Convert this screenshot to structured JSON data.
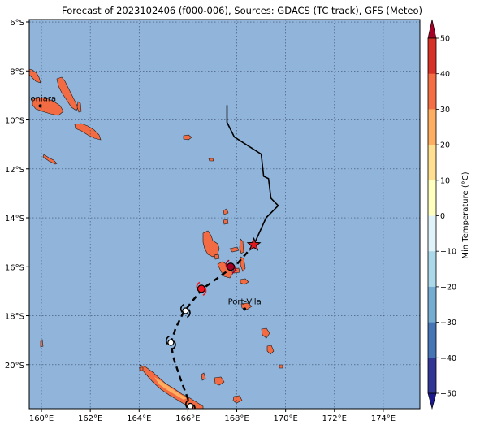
{
  "title": "Forecast of 2023102406 (f000-006), Sources: GDACS (TC track), GFS (Meteo)",
  "map": {
    "lon_range": [
      159.5,
      175.5
    ],
    "lat_range": [
      -21.8,
      -5.9
    ],
    "lon_ticks": [
      "160°E",
      "162°E",
      "164°E",
      "166°E",
      "168°E",
      "170°E",
      "172°E",
      "174°E"
    ],
    "lat_ticks": [
      "6°S",
      "8°S",
      "10°S",
      "12°S",
      "14°S",
      "16°S",
      "18°S",
      "20°S"
    ],
    "ocean_color": "#91b5da",
    "land_color": "#f26b43",
    "gridlines": true
  },
  "cities": [
    {
      "name": "Honiara",
      "lon": 159.95,
      "lat": -9.43
    },
    {
      "name": "Port-Vila",
      "lon": 168.32,
      "lat": -17.73
    }
  ],
  "track": {
    "past": [
      [
        167.6,
        -9.4
      ],
      [
        167.6,
        -10.1
      ],
      [
        167.9,
        -10.7
      ],
      [
        169.0,
        -11.4
      ],
      [
        169.1,
        -12.3
      ],
      [
        169.3,
        -12.4
      ],
      [
        169.4,
        -13.2
      ],
      [
        169.7,
        -13.5
      ],
      [
        169.2,
        -14.0
      ],
      [
        168.7,
        -15.1
      ]
    ],
    "forecast": [
      [
        168.7,
        -15.1
      ],
      [
        168.0,
        -15.9
      ],
      [
        167.3,
        -16.4
      ],
      [
        166.6,
        -16.9
      ],
      [
        166.1,
        -17.5
      ],
      [
        165.8,
        -17.9
      ],
      [
        165.5,
        -18.5
      ],
      [
        165.3,
        -19.1
      ],
      [
        165.4,
        -19.7
      ],
      [
        165.7,
        -20.6
      ],
      [
        166.0,
        -21.4
      ],
      [
        166.1,
        -21.7
      ]
    ],
    "current_position": {
      "lon": 168.7,
      "lat": -15.1
    },
    "forecast_symbols": [
      {
        "lon": 167.75,
        "lat": -16.0,
        "kind": "tropical-storm",
        "color": "#a50026"
      },
      {
        "lon": 166.55,
        "lat": -16.9,
        "kind": "tropical-storm",
        "color": "#f0141e"
      },
      {
        "lon": 165.9,
        "lat": -17.8,
        "kind": "depression",
        "color": "#ffffff"
      },
      {
        "lon": 165.3,
        "lat": -19.1,
        "kind": "depression",
        "color": "#ffffff"
      },
      {
        "lon": 166.1,
        "lat": -21.7,
        "kind": "depression",
        "color": "#ffffff"
      }
    ]
  },
  "colorbar": {
    "label": "Min Temperature (°C)",
    "ticks": [
      "50",
      "40",
      "30",
      "20",
      "10",
      "0",
      "−10",
      "−20",
      "−30",
      "−40",
      "−50"
    ],
    "colors": [
      "#a50026",
      "#d73027",
      "#f46d43",
      "#fdae61",
      "#fee090",
      "#ffffbf",
      "#e0f3f8",
      "#abd9e9",
      "#74add1",
      "#4575b4",
      "#313695",
      "#1a1a8c"
    ]
  }
}
